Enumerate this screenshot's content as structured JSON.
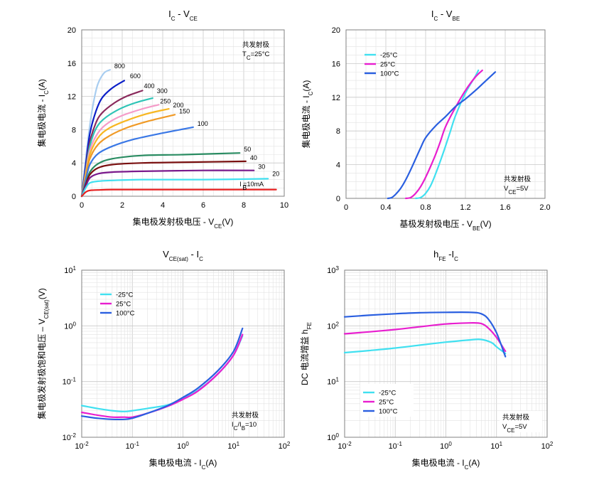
{
  "chart_data": [
    {
      "type": "line",
      "title": "IC - VCE",
      "title_main": "I",
      "title_sub": "C",
      "title_rest": " - V",
      "title_sub2": "CE",
      "xlabel": "集电极发射极电压 - V",
      "xlabel_sub": "CE",
      "xlabel_tail": "(V)",
      "ylabel": "集电极电流 - I",
      "ylabel_sub": "C",
      "ylabel_tail": "(A)",
      "xlim": [
        0,
        10
      ],
      "ylim": [
        0,
        20
      ],
      "xticks": [
        "0",
        "2",
        "4",
        "6",
        "8",
        "10"
      ],
      "yticks": [
        "0",
        "4",
        "8",
        "12",
        "16",
        "20"
      ],
      "grid": true,
      "note_lines": [
        "共发射极",
        "T",
        "C",
        "=25°C"
      ],
      "base_current_note": "I  =10mA",
      "base_current_sub": "B",
      "series": [
        {
          "name": "800",
          "color": "#a8cdf0",
          "x": [
            0,
            0.2,
            0.4,
            0.6,
            0.8,
            1.1,
            1.4
          ],
          "y": [
            0,
            4.5,
            8.5,
            11.5,
            13.5,
            14.8,
            15.2
          ]
        },
        {
          "name": "600",
          "color": "#0a1ec8",
          "x": [
            0,
            0.2,
            0.4,
            0.7,
            1,
            1.5,
            2.1
          ],
          "y": [
            0,
            3.8,
            7.5,
            10.2,
            11.8,
            13,
            13.9
          ]
        },
        {
          "name": "400",
          "color": "#8a2a5c",
          "x": [
            0,
            0.2,
            0.4,
            0.7,
            1,
            1.6,
            2.2,
            3
          ],
          "y": [
            0,
            3.2,
            6.5,
            8.8,
            10,
            11.2,
            12,
            12.7
          ]
        },
        {
          "name": "300",
          "color": "#2ec4b6",
          "x": [
            0,
            0.2,
            0.4,
            0.7,
            1.1,
            1.8,
            2.6,
            3.5
          ],
          "y": [
            0,
            3,
            6,
            8.1,
            9.3,
            10.4,
            11.2,
            11.8
          ]
        },
        {
          "name": "250",
          "color": "#f59bc8",
          "x": [
            0,
            0.2,
            0.4,
            0.8,
            1.3,
            2,
            3,
            3.8
          ],
          "y": [
            0,
            2.8,
            5.5,
            7.6,
            8.8,
            9.7,
            10.5,
            11
          ]
        },
        {
          "name": "200",
          "color": "#f7b722",
          "x": [
            0,
            0.2,
            0.4,
            0.8,
            1.3,
            2.1,
            3.2,
            4.3
          ],
          "y": [
            0,
            2.6,
            5,
            7,
            8.1,
            9,
            9.9,
            10.5
          ]
        },
        {
          "name": "150",
          "color": "#f09a26",
          "x": [
            0,
            0.2,
            0.4,
            0.8,
            1.4,
            2.3,
            3.4,
            4.6
          ],
          "y": [
            0,
            2.4,
            4.5,
            6.2,
            7.3,
            8.3,
            9.1,
            9.8
          ]
        },
        {
          "name": "100",
          "color": "#3a78e6",
          "x": [
            0,
            0.2,
            0.4,
            0.8,
            1.5,
            2.5,
            4,
            5.5
          ],
          "y": [
            0,
            2,
            3.8,
            5.1,
            6,
            6.8,
            7.6,
            8.3
          ]
        },
        {
          "name": "50",
          "color": "#2a8c62",
          "x": [
            0,
            0.2,
            0.4,
            0.8,
            1.5,
            3,
            5,
            7.8
          ],
          "y": [
            0,
            1.5,
            2.9,
            3.9,
            4.5,
            4.9,
            5,
            5.2
          ]
        },
        {
          "name": "40",
          "color": "#7a1010",
          "x": [
            0,
            0.2,
            0.4,
            0.8,
            1.5,
            3,
            5.5,
            8.1
          ],
          "y": [
            0,
            1.4,
            2.6,
            3.4,
            3.8,
            4,
            4.1,
            4.2
          ]
        },
        {
          "name": "30",
          "color": "#7a1a8c",
          "x": [
            0,
            0.2,
            0.4,
            0.8,
            1.5,
            3,
            6,
            8.5
          ],
          "y": [
            0,
            1.2,
            2.2,
            2.7,
            2.9,
            3,
            3.1,
            3.1
          ]
        },
        {
          "name": "20",
          "color": "#40e0f0",
          "x": [
            0,
            0.2,
            0.4,
            0.8,
            1.5,
            3,
            6,
            9.2
          ],
          "y": [
            0,
            1,
            1.6,
            1.8,
            1.9,
            2,
            2,
            2.1
          ]
        },
        {
          "name": "10",
          "color": "#e61e1e",
          "x": [
            0,
            0.2,
            0.4,
            0.8,
            1.5,
            3,
            6,
            9.6
          ],
          "y": [
            0,
            0.5,
            0.7,
            0.75,
            0.8,
            0.8,
            0.8,
            0.8
          ]
        }
      ]
    },
    {
      "type": "line",
      "title": "IC - VBE",
      "title_main": "I",
      "title_sub": "C",
      "title_rest": " - V",
      "title_sub2": "BE",
      "xlabel": "基极发射极电压 - V",
      "xlabel_sub": "BE",
      "xlabel_tail": "(V)",
      "ylabel": "集电极电流 - I",
      "ylabel_sub": "C",
      "ylabel_tail": "(A)",
      "xlim": [
        0,
        2.0
      ],
      "ylim": [
        0,
        20
      ],
      "xticks": [
        "0",
        "0.4",
        "0.8",
        "1.2",
        "1.6",
        "2.0"
      ],
      "yticks": [
        "0",
        "4",
        "8",
        "12",
        "16",
        "20"
      ],
      "grid": true,
      "legend": "top-left",
      "note_lines": [
        "共发射极",
        "V",
        "CE",
        "=5V"
      ],
      "series": [
        {
          "name": "-25°C",
          "color": "#40e0f0",
          "x": [
            0.7,
            0.75,
            0.8,
            0.85,
            0.9,
            0.95,
            1.0,
            1.05,
            1.1,
            1.2,
            1.3,
            1.33
          ],
          "y": [
            0,
            0.1,
            0.6,
            1.5,
            2.9,
            4.5,
            6.2,
            8.0,
            9.8,
            12.5,
            14.5,
            15.2
          ]
        },
        {
          "name": "25°C",
          "color": "#e81ecf",
          "x": [
            0.6,
            0.65,
            0.7,
            0.75,
            0.8,
            0.85,
            0.9,
            0.95,
            1.0,
            1.1,
            1.2,
            1.3,
            1.37
          ],
          "y": [
            0,
            0.1,
            0.6,
            1.4,
            2.5,
            3.8,
            5.2,
            6.8,
            8.5,
            10.8,
            12.8,
            14.4,
            15.2
          ]
        },
        {
          "name": "100°C",
          "color": "#2a5fe0",
          "x": [
            0.42,
            0.46,
            0.5,
            0.55,
            0.6,
            0.65,
            0.7,
            0.75,
            0.8,
            0.9,
            1.0,
            1.1,
            1.2,
            1.3,
            1.4,
            1.5
          ],
          "y": [
            0,
            0.1,
            0.5,
            1.2,
            2.2,
            3.4,
            4.7,
            6.0,
            7.2,
            8.6,
            9.7,
            10.9,
            11.8,
            12.8,
            13.9,
            15.0
          ]
        }
      ]
    },
    {
      "type": "line",
      "title": "VCE(sat) - IC",
      "title_main": "V",
      "title_sub": "CE(sat)",
      "title_rest": " - I",
      "title_sub2": "C",
      "xlabel": "集电极电流 - I",
      "xlabel_sub": "C",
      "xlabel_tail": "(A)",
      "ylabel": "集电极发射极饱和电压  –  V",
      "ylabel_sub": "CE(sat)",
      "ylabel_tail": "(V)",
      "xscale": "log",
      "yscale": "log",
      "xlim": [
        0.01,
        100
      ],
      "ylim": [
        0.01,
        10
      ],
      "xticks": [
        "10",
        "10",
        "10",
        "10",
        "10"
      ],
      "xtick_exp": [
        "-2",
        "-1",
        "0",
        "1",
        "2"
      ],
      "yticks": [
        "10",
        "10",
        "10",
        "10"
      ],
      "ytick_exp": [
        "-2",
        "-1",
        "0",
        "1"
      ],
      "grid": true,
      "legend": "top-left",
      "note_lines": [
        "共发射极",
        "I",
        "C",
        "/I",
        "B",
        "=10"
      ],
      "series": [
        {
          "name": "-25°C",
          "color": "#40e0f0",
          "x": [
            0.01,
            0.02,
            0.04,
            0.07,
            0.1,
            0.2,
            0.5,
            1,
            2,
            5,
            10,
            15
          ],
          "y": [
            0.037,
            0.033,
            0.03,
            0.029,
            0.03,
            0.033,
            0.038,
            0.05,
            0.07,
            0.14,
            0.3,
            0.66
          ]
        },
        {
          "name": "25°C",
          "color": "#e81ecf",
          "x": [
            0.01,
            0.02,
            0.04,
            0.07,
            0.1,
            0.2,
            0.5,
            1,
            2,
            5,
            10,
            15
          ],
          "y": [
            0.028,
            0.025,
            0.023,
            0.023,
            0.023,
            0.027,
            0.036,
            0.048,
            0.068,
            0.14,
            0.3,
            0.7
          ]
        },
        {
          "name": "100°C",
          "color": "#2a5fe0",
          "x": [
            0.01,
            0.02,
            0.04,
            0.07,
            0.1,
            0.2,
            0.5,
            1,
            2,
            5,
            10,
            15
          ],
          "y": [
            0.024,
            0.022,
            0.021,
            0.021,
            0.022,
            0.027,
            0.037,
            0.052,
            0.077,
            0.16,
            0.35,
            0.9
          ]
        }
      ]
    },
    {
      "type": "line",
      "title": "hFE -IC",
      "title_main": "h",
      "title_sub": "FE",
      "title_rest": " -I",
      "title_sub2": "C",
      "xlabel": "集电极电流 - I",
      "xlabel_sub": "C",
      "xlabel_tail": "(A)",
      "ylabel": "DC 电流增益  h",
      "ylabel_sub": "FE",
      "ylabel_tail": "",
      "xscale": "log",
      "yscale": "log",
      "xlim": [
        0.01,
        100
      ],
      "ylim": [
        1,
        1000
      ],
      "xticks": [
        "10",
        "10",
        "10",
        "10",
        "10"
      ],
      "xtick_exp": [
        "-2",
        "-1",
        "0",
        "1",
        "2"
      ],
      "yticks": [
        "10",
        "10",
        "10",
        "10"
      ],
      "ytick_exp": [
        "0",
        "1",
        "2",
        "3"
      ],
      "grid": true,
      "legend": "bottom-left",
      "note_lines": [
        "共发射极",
        "V",
        "CE",
        "=5V"
      ],
      "series": [
        {
          "name": "-25°C",
          "color": "#40e0f0",
          "x": [
            0.01,
            0.03,
            0.1,
            0.3,
            1,
            3,
            5,
            8,
            10,
            15
          ],
          "y": [
            33,
            36,
            40,
            45,
            51,
            56,
            57,
            50,
            42,
            32
          ]
        },
        {
          "name": "25°C",
          "color": "#e81ecf",
          "x": [
            0.01,
            0.03,
            0.1,
            0.3,
            1,
            3,
            5,
            7,
            10,
            15
          ],
          "y": [
            72,
            78,
            86,
            96,
            108,
            113,
            110,
            90,
            62,
            35
          ]
        },
        {
          "name": "100°C",
          "color": "#2a5fe0",
          "x": [
            0.01,
            0.03,
            0.1,
            0.3,
            1,
            3,
            5,
            7,
            10,
            15
          ],
          "y": [
            145,
            155,
            165,
            172,
            175,
            175,
            165,
            130,
            75,
            28
          ]
        }
      ]
    }
  ]
}
